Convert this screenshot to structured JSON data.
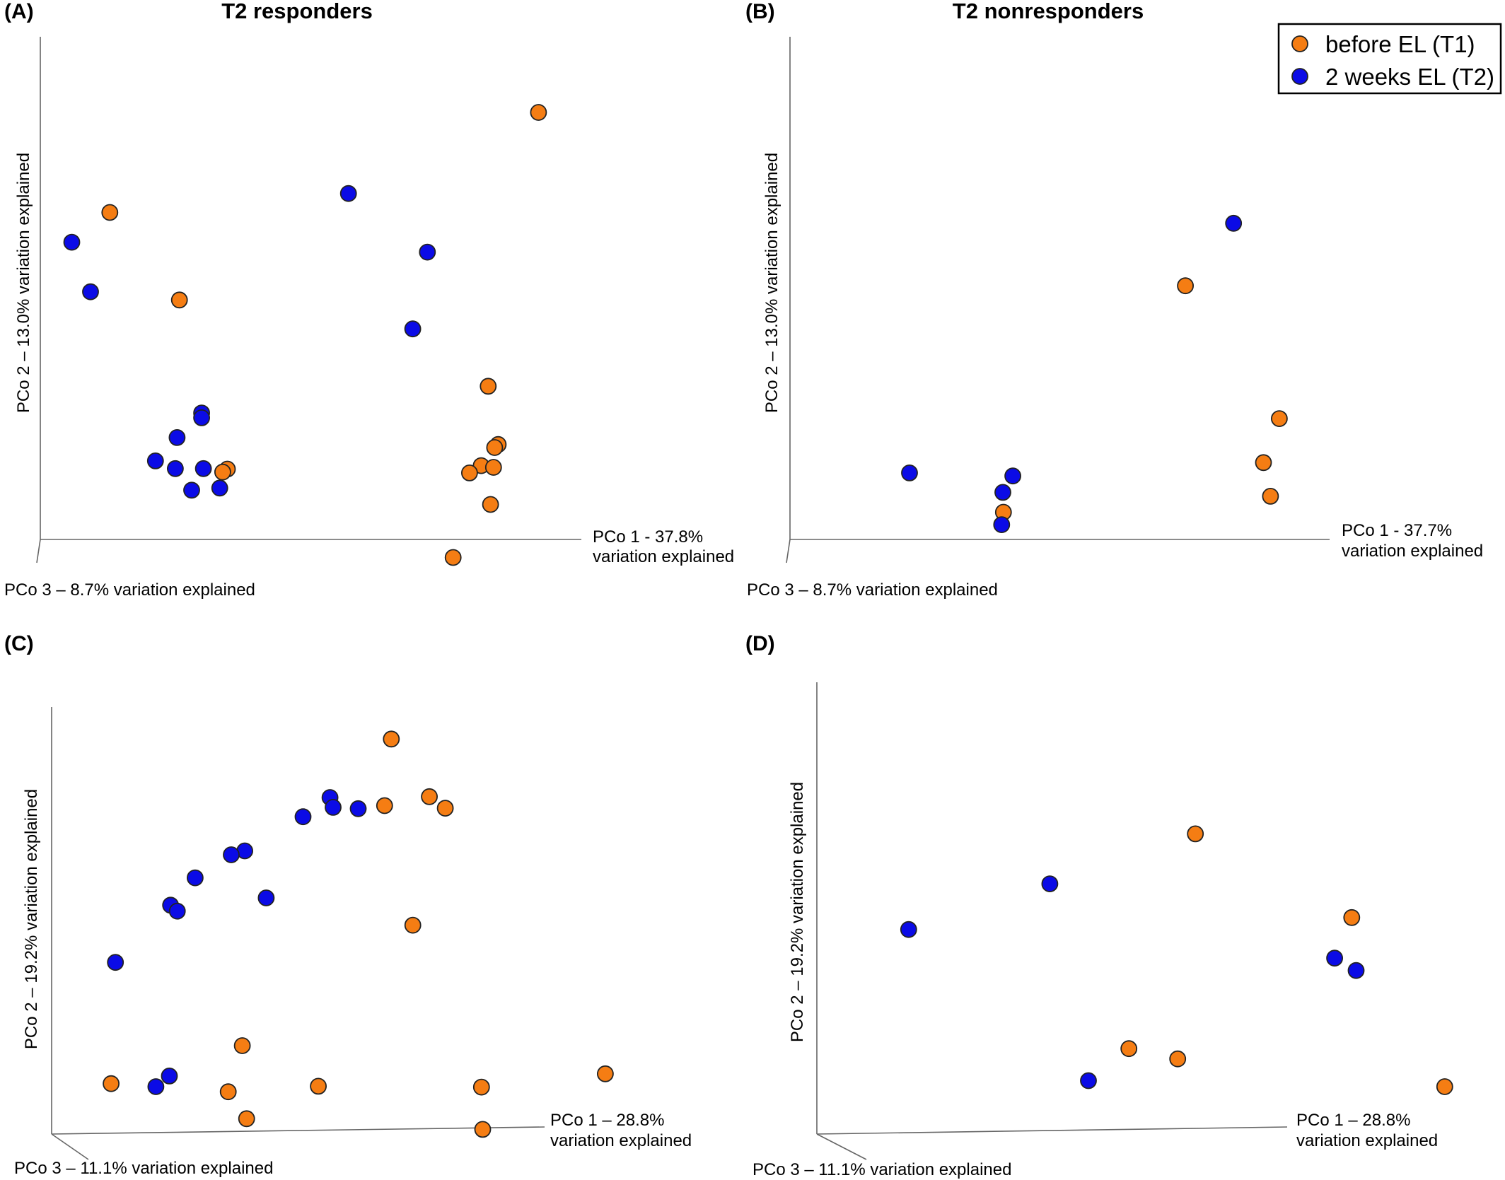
{
  "colors": {
    "t1": "#f57d13",
    "t2": "#0b0be6"
  },
  "legend": {
    "items": [
      {
        "label": "before EL (T1)",
        "color": "#f57d13"
      },
      {
        "label": "2 weeks EL (T2)",
        "color": "#0b0be6"
      }
    ],
    "placement": "top-right"
  },
  "chart_data": [
    {
      "panel": "(A)",
      "title": "T2 responders",
      "type": "scatter",
      "xlabel": "PCo 1 - 37.8%",
      "xlabel2": "variation explained",
      "ylabel": "PCo 2 – 13.0% variation explained",
      "zlabel": "PCo 3 – 8.7% variation explained",
      "xlim": [
        0,
        100
      ],
      "ylim": [
        0,
        100
      ],
      "grid": false,
      "series": [
        {
          "name": "before EL (T1)",
          "color": "#f57d13",
          "points": [
            {
              "x": 82.4,
              "y": 98.2
            },
            {
              "x": 9.1,
              "y": 75.0
            },
            {
              "x": 21.0,
              "y": 54.7
            },
            {
              "x": 73.8,
              "y": 34.7
            },
            {
              "x": 75.5,
              "y": 21.2
            },
            {
              "x": 74.9,
              "y": 20.5
            },
            {
              "x": 72.6,
              "y": 16.3
            },
            {
              "x": 74.7,
              "y": 15.9
            },
            {
              "x": 70.6,
              "y": 14.6
            },
            {
              "x": 29.2,
              "y": 15.5
            },
            {
              "x": 28.4,
              "y": 14.8
            },
            {
              "x": 74.2,
              "y": 7.3
            },
            {
              "x": 67.8,
              "y": -5.0
            }
          ]
        },
        {
          "name": "2 weeks EL (T2)",
          "color": "#0b0be6",
          "points": [
            {
              "x": 49.9,
              "y": 79.4
            },
            {
              "x": 2.6,
              "y": 68.1
            },
            {
              "x": 63.4,
              "y": 65.8
            },
            {
              "x": 5.8,
              "y": 56.6
            },
            {
              "x": 60.9,
              "y": 48.0
            },
            {
              "x": 24.8,
              "y": 28.5
            },
            {
              "x": 24.8,
              "y": 27.4
            },
            {
              "x": 20.6,
              "y": 22.8
            },
            {
              "x": 16.9,
              "y": 17.4
            },
            {
              "x": 20.3,
              "y": 15.6
            },
            {
              "x": 25.1,
              "y": 15.6
            },
            {
              "x": 23.1,
              "y": 10.6
            },
            {
              "x": 27.9,
              "y": 11.1
            }
          ]
        }
      ]
    },
    {
      "panel": "(B)",
      "title": "T2 nonresponders",
      "type": "scatter",
      "xlabel": "PCo 1 - 37.7%",
      "xlabel2": "variation explained",
      "ylabel": "PCo 2 – 13.0% variation explained",
      "zlabel": "PCo 3 – 8.7% variation explained",
      "xlim": [
        0,
        100
      ],
      "ylim": [
        0,
        100
      ],
      "grid": false,
      "series": [
        {
          "name": "before EL (T1)",
          "color": "#f57d13",
          "points": [
            {
              "x": 67.0,
              "y": 58.0
            },
            {
              "x": 83.0,
              "y": 27.2
            },
            {
              "x": 80.3,
              "y": 17.0
            },
            {
              "x": 81.5,
              "y": 9.2
            },
            {
              "x": 36.0,
              "y": 5.5
            }
          ]
        },
        {
          "name": "2 weeks EL (T2)",
          "color": "#0b0be6",
          "points": [
            {
              "x": 75.2,
              "y": 72.5
            },
            {
              "x": 20.0,
              "y": 14.6
            },
            {
              "x": 37.6,
              "y": 13.9
            },
            {
              "x": 35.9,
              "y": 10.1
            },
            {
              "x": 35.7,
              "y": 2.6
            }
          ]
        }
      ]
    },
    {
      "panel": "(C)",
      "title": "",
      "type": "scatter",
      "xlabel": "PCo 1 – 28.8%",
      "xlabel2": "variation explained",
      "ylabel": "PCo 2 – 19.2% variation explained",
      "zlabel": "PCo 3 – 11.1% variation explained",
      "xlim": [
        0,
        100
      ],
      "ylim": [
        0,
        100
      ],
      "grid": false,
      "series": [
        {
          "name": "before EL (T1)",
          "color": "#f57d13",
          "points": [
            {
              "x": 55.4,
              "y": 92.5
            },
            {
              "x": 61.6,
              "y": 79.0
            },
            {
              "x": 54.3,
              "y": 76.9
            },
            {
              "x": 64.2,
              "y": 76.3
            },
            {
              "x": 58.9,
              "y": 48.9
            },
            {
              "x": 31.1,
              "y": 20.7
            },
            {
              "x": 90.3,
              "y": 14.1
            },
            {
              "x": 9.7,
              "y": 11.8
            },
            {
              "x": 43.5,
              "y": 11.2
            },
            {
              "x": 70.1,
              "y": 11.0
            },
            {
              "x": 28.8,
              "y": 9.9
            },
            {
              "x": 31.8,
              "y": 3.6
            },
            {
              "x": 70.3,
              "y": 1.1
            }
          ]
        },
        {
          "name": "2 weeks EL (T2)",
          "color": "#0b0be6",
          "points": [
            {
              "x": 45.4,
              "y": 78.8
            },
            {
              "x": 45.9,
              "y": 76.5
            },
            {
              "x": 50.0,
              "y": 76.2
            },
            {
              "x": 41.0,
              "y": 74.3
            },
            {
              "x": 31.5,
              "y": 66.3
            },
            {
              "x": 29.3,
              "y": 65.4
            },
            {
              "x": 23.4,
              "y": 60.0
            },
            {
              "x": 35.0,
              "y": 55.3
            },
            {
              "x": 19.4,
              "y": 53.6
            },
            {
              "x": 20.5,
              "y": 52.2
            },
            {
              "x": 10.4,
              "y": 40.2
            },
            {
              "x": 19.2,
              "y": 13.6
            },
            {
              "x": 17.0,
              "y": 11.1
            }
          ]
        }
      ]
    },
    {
      "panel": "(D)",
      "title": "",
      "type": "scatter",
      "xlabel": "PCo 1 – 28.8%",
      "xlabel2": "variation explained",
      "ylabel": "PCo 2 – 19.2% variation explained",
      "zlabel": "PCo 3 – 11.1% variation explained",
      "xlim": [
        0,
        100
      ],
      "ylim": [
        0,
        100
      ],
      "grid": false,
      "series": [
        {
          "name": "before EL (T1)",
          "color": "#f57d13",
          "points": [
            {
              "x": 59.8,
              "y": 70.3
            },
            {
              "x": 84.5,
              "y": 50.7
            },
            {
              "x": 49.3,
              "y": 20.0
            },
            {
              "x": 57.0,
              "y": 17.6
            },
            {
              "x": 99.2,
              "y": 11.1
            }
          ]
        },
        {
          "name": "2 weeks EL (T2)",
          "color": "#0b0be6",
          "points": [
            {
              "x": 36.8,
              "y": 58.6
            },
            {
              "x": 14.5,
              "y": 47.9
            },
            {
              "x": 81.8,
              "y": 41.2
            },
            {
              "x": 85.2,
              "y": 38.3
            },
            {
              "x": 42.9,
              "y": 12.5
            }
          ]
        }
      ]
    }
  ]
}
